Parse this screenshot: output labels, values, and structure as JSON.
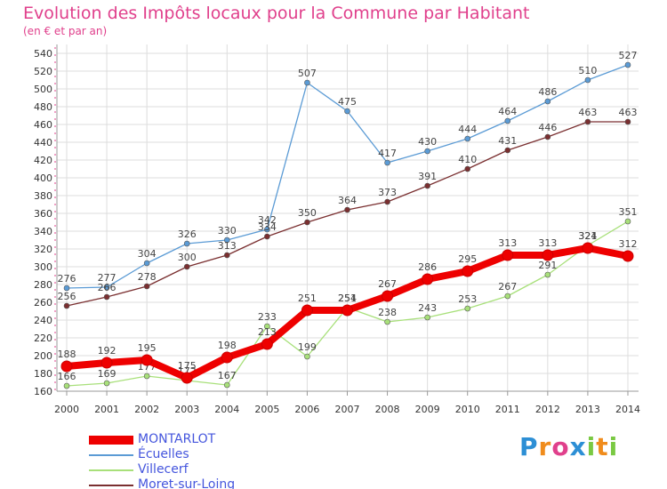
{
  "header": {
    "title": "Evolution des Impôts locaux pour la Commune par Habitant",
    "subtitle": "(en € et par an)"
  },
  "logo": {
    "text": "Proxiti",
    "colors": [
      "#2d8fd5",
      "#f08c1c",
      "#e0408c",
      "#2d8fd5",
      "#7ac943",
      "#f08c1c",
      "#7ac943"
    ]
  },
  "colors": {
    "montarlot": "#ee0000",
    "ecuelles": "#5b9bd5",
    "villecerf": "#a8e07a",
    "moret": "#7a2f30",
    "axis_text": "#333333",
    "grid": "#dddddd",
    "axis_tick": "#e0408c"
  },
  "chart_data": {
    "type": "line",
    "title": "Evolution des Impôts locaux pour la Commune par Habitant",
    "subtitle": "(en € et par an)",
    "x": [
      2000,
      2001,
      2002,
      2003,
      2004,
      2005,
      2006,
      2007,
      2008,
      2009,
      2010,
      2011,
      2012,
      2013,
      2014
    ],
    "ylim": [
      160,
      540
    ],
    "yticks": [
      160,
      180,
      200,
      220,
      240,
      260,
      280,
      300,
      320,
      340,
      360,
      380,
      400,
      420,
      440,
      460,
      480,
      500,
      520,
      540
    ],
    "grid": true,
    "legend_position": "bottom-left",
    "series": [
      {
        "name": "MONTARLOT",
        "values": [
          188,
          192,
          195,
          175,
          198,
          213,
          251,
          251,
          267,
          286,
          295,
          313,
          313,
          321,
          312
        ]
      },
      {
        "name": "Écuelles",
        "values": [
          276,
          277,
          304,
          326,
          330,
          342,
          507,
          475,
          417,
          430,
          444,
          464,
          486,
          510,
          527
        ]
      },
      {
        "name": "Villecerf",
        "values": [
          166,
          169,
          177,
          172,
          167,
          233,
          199,
          254,
          238,
          243,
          253,
          267,
          291,
          324,
          351
        ]
      },
      {
        "name": "Moret-sur-Loing",
        "values": [
          256,
          266,
          278,
          300,
          313,
          334,
          350,
          364,
          373,
          391,
          410,
          431,
          446,
          463,
          463
        ]
      }
    ]
  }
}
